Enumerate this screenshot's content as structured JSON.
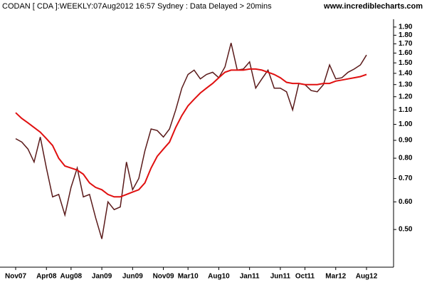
{
  "chart_data": {
    "type": "line",
    "title": "CODAN [ CDA ]:WEEKLY:07Aug2012 16:57 Sydney : Data Delayed > 20mins",
    "source": "www.incrediblecharts.com",
    "categories": [
      "Nov07",
      null,
      null,
      null,
      null,
      "Apr08",
      null,
      null,
      null,
      "Aug08",
      null,
      null,
      null,
      null,
      "Jan09",
      null,
      null,
      null,
      null,
      "Jun09",
      null,
      null,
      null,
      null,
      "Nov09",
      null,
      null,
      null,
      "Mar10",
      null,
      null,
      null,
      null,
      "Aug10",
      null,
      null,
      null,
      null,
      "Jan11",
      null,
      null,
      null,
      null,
      "Jun11",
      null,
      null,
      null,
      "Oct11",
      null,
      null,
      null,
      null,
      "Mar12",
      null,
      null,
      null,
      null,
      "Aug12"
    ],
    "series": [
      {
        "color": "#5a1a1a",
        "values": [
          0.91,
          0.89,
          0.85,
          0.78,
          0.92,
          0.75,
          0.62,
          0.63,
          0.55,
          0.66,
          0.75,
          0.62,
          0.63,
          0.54,
          0.47,
          0.6,
          0.57,
          0.58,
          0.78,
          0.65,
          0.7,
          0.84,
          0.97,
          0.96,
          0.92,
          0.97,
          1.1,
          1.27,
          1.39,
          1.43,
          1.35,
          1.39,
          1.41,
          1.36,
          1.46,
          1.71,
          1.43,
          1.44,
          1.51,
          1.27,
          1.35,
          1.43,
          1.27,
          1.27,
          1.24,
          1.1,
          1.31,
          1.3,
          1.25,
          1.24,
          1.3,
          1.48,
          1.35,
          1.36,
          1.41,
          1.44,
          1.48,
          1.58
        ]
      },
      {
        "color": "#e01010",
        "values": [
          1.08,
          1.04,
          1.01,
          0.98,
          0.95,
          0.91,
          0.87,
          0.8,
          0.76,
          0.75,
          0.74,
          0.72,
          0.68,
          0.66,
          0.65,
          0.63,
          0.62,
          0.62,
          0.63,
          0.64,
          0.65,
          0.68,
          0.75,
          0.81,
          0.85,
          0.89,
          0.98,
          1.06,
          1.13,
          1.18,
          1.23,
          1.27,
          1.31,
          1.36,
          1.41,
          1.43,
          1.43,
          1.43,
          1.44,
          1.44,
          1.43,
          1.41,
          1.39,
          1.36,
          1.32,
          1.31,
          1.31,
          1.3,
          1.3,
          1.3,
          1.31,
          1.31,
          1.33,
          1.34,
          1.35,
          1.36,
          1.37,
          1.39
        ]
      }
    ],
    "log_scale": true,
    "ylim": [
      0.39,
      2.0
    ],
    "yticks": [
      {
        "value": 0.5,
        "label": "0.50"
      },
      {
        "value": 0.6,
        "label": "0.60"
      },
      {
        "value": 0.7,
        "label": "0.70"
      },
      {
        "value": 0.8,
        "label": "0.80"
      },
      {
        "value": 0.9,
        "label": "0.90"
      },
      {
        "value": 1.0,
        "label": "1.00"
      },
      {
        "value": 1.1,
        "label": "1.10"
      },
      {
        "value": 1.2,
        "label": "1.20"
      },
      {
        "value": 1.3,
        "label": "1.30"
      },
      {
        "value": 1.4,
        "label": "1.40"
      },
      {
        "value": 1.5,
        "label": "1.50"
      },
      {
        "value": 1.6,
        "label": "1.60"
      },
      {
        "value": 1.7,
        "label": "1.70"
      },
      {
        "value": 1.8,
        "label": "1.80"
      },
      {
        "value": 1.9,
        "label": "1.90"
      }
    ]
  }
}
